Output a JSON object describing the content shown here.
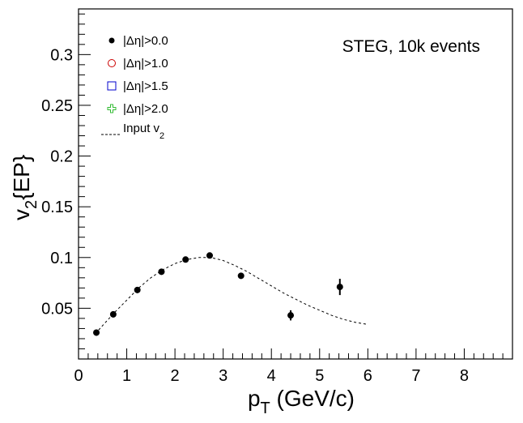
{
  "chart_data": {
    "type": "scatter",
    "annotation": "STEG, 10k events",
    "xlabel": "p_T (GeV/c)",
    "ylabel": "v_2{EP}",
    "xlim": [
      0,
      9
    ],
    "ylim": [
      0,
      0.345
    ],
    "x_ticks": [
      0,
      1,
      2,
      3,
      4,
      5,
      6,
      7,
      8
    ],
    "x_tick_labels": [
      "0",
      "1",
      "2",
      "3",
      "4",
      "5",
      "6",
      "7",
      "8"
    ],
    "y_ticks": [
      0.05,
      0.1,
      0.15,
      0.2,
      0.25,
      0.3
    ],
    "y_tick_labels": [
      "0.05",
      "0.1",
      "0.15",
      "0.2",
      "0.25",
      "0.3"
    ],
    "legend_position": "top-left",
    "series": [
      {
        "name": "|Δη|>0.0",
        "marker": "filled-circle",
        "color": "#000000",
        "points": [
          {
            "x": 0.37,
            "y": 0.026,
            "err": 0.003
          },
          {
            "x": 0.72,
            "y": 0.044,
            "err": 0.003
          },
          {
            "x": 1.22,
            "y": 0.068,
            "err": 0.003
          },
          {
            "x": 1.72,
            "y": 0.086,
            "err": 0.003
          },
          {
            "x": 2.22,
            "y": 0.098,
            "err": 0.003
          },
          {
            "x": 2.72,
            "y": 0.102,
            "err": 0.003
          },
          {
            "x": 3.37,
            "y": 0.082,
            "err": 0.003
          },
          {
            "x": 4.4,
            "y": 0.043,
            "err": 0.005
          },
          {
            "x": 5.42,
            "y": 0.071,
            "err": 0.008
          }
        ]
      },
      {
        "name": "|Δη|>1.0",
        "marker": "open-circle",
        "color": "#cc0000",
        "points": []
      },
      {
        "name": "|Δη|>1.5",
        "marker": "open-square",
        "color": "#0000cc",
        "points": []
      },
      {
        "name": "|Δη|>2.0",
        "marker": "open-cross",
        "color": "#33bb33",
        "points": []
      },
      {
        "name": "Input v_2",
        "marker": "dashed-line",
        "color": "#000000",
        "x": [
          0.35,
          0.5,
          0.75,
          1.0,
          1.25,
          1.5,
          1.75,
          2.0,
          2.25,
          2.5,
          2.75,
          3.0,
          3.25,
          3.5,
          3.75,
          4.0,
          4.25,
          4.5,
          4.75,
          5.0,
          5.25,
          5.5,
          5.75,
          6.0
        ],
        "y": [
          0.025,
          0.033,
          0.046,
          0.058,
          0.07,
          0.08,
          0.088,
          0.094,
          0.098,
          0.1,
          0.1,
          0.097,
          0.092,
          0.086,
          0.079,
          0.072,
          0.065,
          0.059,
          0.053,
          0.048,
          0.043,
          0.039,
          0.036,
          0.034
        ]
      }
    ]
  }
}
